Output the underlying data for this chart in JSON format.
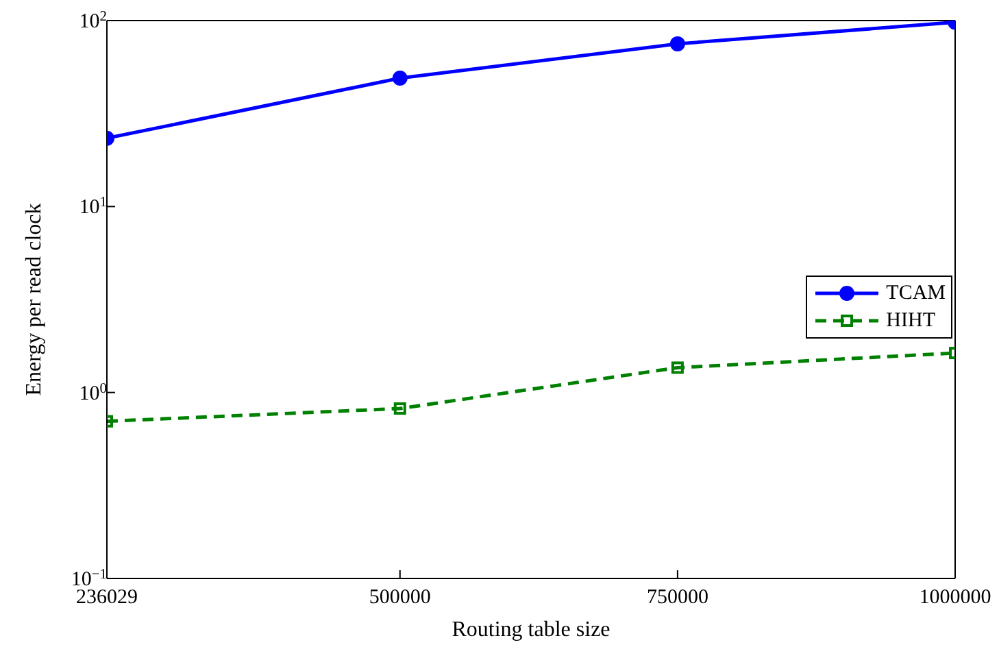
{
  "chart_data": {
    "type": "line",
    "xlabel": "Routing table size",
    "ylabel": "Energy per read clock",
    "x": [
      236029,
      500000,
      750000,
      1000000
    ],
    "series": [
      {
        "name": "TCAM",
        "color": "#0000ff",
        "values": [
          23.3,
          49,
          75,
          98
        ],
        "marker": "circle",
        "line_style": "solid"
      },
      {
        "name": "HIHT",
        "color": "#008000",
        "values": [
          0.7,
          0.82,
          1.36,
          1.63
        ],
        "marker": "square",
        "line_style": "dashed"
      }
    ],
    "log": "y",
    "xlim": [
      236029,
      1000000
    ],
    "xticks": [
      236029,
      500000,
      750000,
      1000000
    ],
    "ylim": [
      0.1,
      100
    ],
    "yticks": [
      {
        "value": 0.1,
        "label": "10$^{−1}$"
      },
      {
        "value": 1,
        "label": "10$^{0}$"
      },
      {
        "value": 10,
        "label": "10$^{1}$"
      },
      {
        "value": 100,
        "label": "10$^{2}$"
      }
    ],
    "grid": false,
    "legend": "right"
  }
}
